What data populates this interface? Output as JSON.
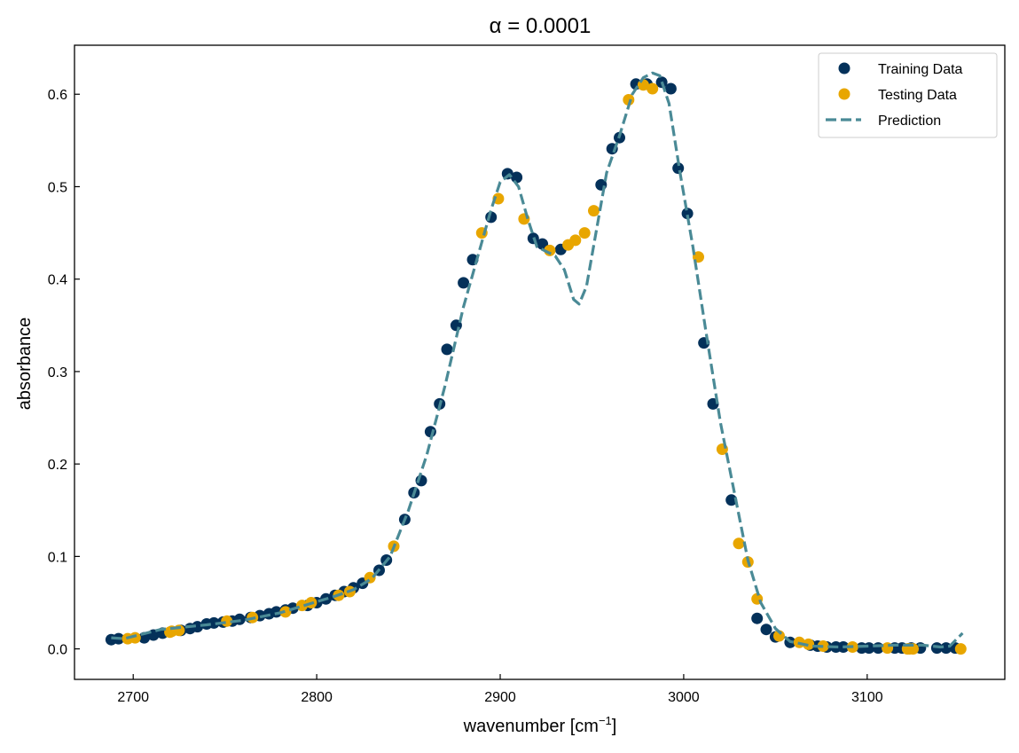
{
  "chart_data": {
    "type": "scatter",
    "title": "α = 0.0001",
    "xlabel": "wavenumber [cm",
    "xlabel_superscript": "−1",
    "xlabel_suffix": "]",
    "ylabel": "absorbance",
    "xlim": [
      2668,
      3175
    ],
    "ylim": [
      -0.033,
      0.653
    ],
    "xticks": [
      2700,
      2800,
      2900,
      3000,
      3100
    ],
    "yticks": [
      0.0,
      0.1,
      0.2,
      0.3,
      0.4,
      0.5,
      0.6
    ],
    "ytick_labels": [
      "0.0",
      "0.1",
      "0.2",
      "0.3",
      "0.4",
      "0.5",
      "0.6"
    ],
    "grid": false,
    "legend_position": "top-right",
    "colors": {
      "training": "#04315a",
      "testing": "#e8a600",
      "prediction": "#4a8a96"
    },
    "series": [
      {
        "name": "Training Data",
        "kind": "markers",
        "x": [
          2688,
          2692,
          2706,
          2711,
          2716,
          2726,
          2731,
          2735,
          2740,
          2744,
          2749,
          2754,
          2758,
          2764,
          2769,
          2774,
          2778,
          2783,
          2787,
          2795,
          2800,
          2805,
          2810,
          2815,
          2820,
          2825,
          2834,
          2838,
          2848,
          2853,
          2857,
          2862,
          2867,
          2871,
          2876,
          2880,
          2885,
          2895,
          2904,
          2909,
          2918,
          2923,
          2933,
          2955,
          2961,
          2965,
          2974,
          2980,
          2988,
          2993,
          2997,
          3002,
          3011,
          3016,
          3026,
          3040,
          3045,
          3050,
          3058,
          3069,
          3073,
          3078,
          3083,
          3087,
          3097,
          3101,
          3106,
          3115,
          3119,
          3124,
          3129,
          3138,
          3143,
          3148
        ],
        "y": [
          0.01,
          0.011,
          0.012,
          0.015,
          0.017,
          0.02,
          0.022,
          0.024,
          0.027,
          0.028,
          0.029,
          0.03,
          0.032,
          0.034,
          0.036,
          0.038,
          0.04,
          0.042,
          0.044,
          0.047,
          0.05,
          0.054,
          0.058,
          0.062,
          0.066,
          0.071,
          0.085,
          0.096,
          0.14,
          0.169,
          0.182,
          0.235,
          0.265,
          0.324,
          0.35,
          0.396,
          0.421,
          0.467,
          0.514,
          0.51,
          0.444,
          0.438,
          0.432,
          0.502,
          0.541,
          0.553,
          0.611,
          0.611,
          0.613,
          0.606,
          0.52,
          0.471,
          0.331,
          0.265,
          0.161,
          0.033,
          0.021,
          0.013,
          0.007,
          0.004,
          0.003,
          0.002,
          0.002,
          0.002,
          0.001,
          0.001,
          0.001,
          0.001,
          0.001,
          0.001,
          0.001,
          0.001,
          0.001,
          0.001
        ]
      },
      {
        "name": "Testing Data",
        "kind": "markers",
        "x": [
          2697,
          2701,
          2720,
          2721,
          2725,
          2751,
          2765,
          2783,
          2792,
          2797,
          2812,
          2818,
          2829,
          2842,
          2890,
          2899,
          2913,
          2927,
          2937,
          2941,
          2946,
          2951,
          2970,
          2978,
          2983,
          3008,
          3021,
          3030,
          3035,
          3040,
          3052,
          3063,
          3068,
          3076,
          3092,
          3111,
          3122,
          3123,
          3125,
          3151
        ],
        "y": [
          0.011,
          0.012,
          0.018,
          0.019,
          0.02,
          0.03,
          0.034,
          0.04,
          0.047,
          0.05,
          0.058,
          0.062,
          0.077,
          0.111,
          0.45,
          0.487,
          0.465,
          0.431,
          0.437,
          0.442,
          0.45,
          0.474,
          0.594,
          0.61,
          0.606,
          0.424,
          0.216,
          0.114,
          0.094,
          0.054,
          0.014,
          0.007,
          0.005,
          0.003,
          0.002,
          0.001,
          0.0,
          0.0,
          0.0,
          0.0
        ]
      },
      {
        "name": "Prediction",
        "kind": "dashed-line",
        "x": [
          2688,
          2695,
          2705,
          2715,
          2725,
          2740,
          2760,
          2780,
          2800,
          2810,
          2820,
          2830,
          2840,
          2850,
          2860,
          2870,
          2880,
          2890,
          2895,
          2900,
          2905,
          2910,
          2915,
          2920,
          2925,
          2930,
          2935,
          2940,
          2943,
          2947,
          2952,
          2958,
          2965,
          2972,
          2978,
          2983,
          2987,
          2992,
          2998,
          3005,
          3012,
          3020,
          3028,
          3035,
          3042,
          3050,
          3058,
          3070,
          3085,
          3100,
          3115,
          3130,
          3140,
          3145,
          3148,
          3152
        ],
        "y": [
          0.012,
          0.011,
          0.016,
          0.021,
          0.023,
          0.026,
          0.031,
          0.039,
          0.051,
          0.057,
          0.064,
          0.076,
          0.1,
          0.15,
          0.21,
          0.285,
          0.37,
          0.44,
          0.475,
          0.505,
          0.513,
          0.5,
          0.465,
          0.435,
          0.43,
          0.425,
          0.41,
          0.378,
          0.373,
          0.392,
          0.448,
          0.515,
          0.555,
          0.6,
          0.618,
          0.623,
          0.62,
          0.59,
          0.515,
          0.435,
          0.345,
          0.245,
          0.165,
          0.096,
          0.05,
          0.022,
          0.008,
          0.003,
          0.002,
          0.003,
          0.004,
          0.004,
          0.002,
          0.003,
          0.009,
          0.017
        ]
      }
    ]
  }
}
